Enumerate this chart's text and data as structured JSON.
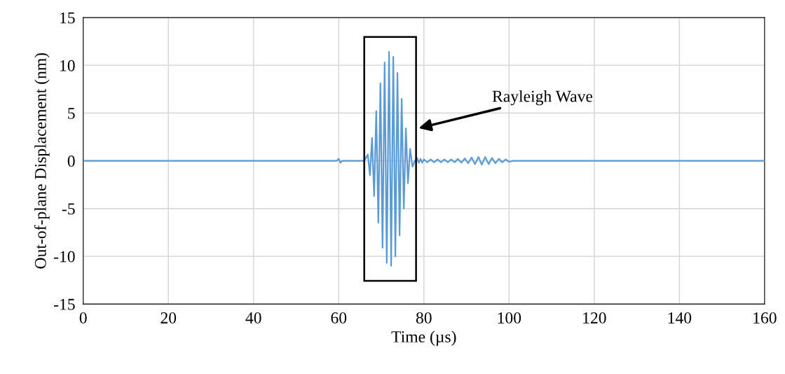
{
  "chart_data": {
    "type": "line",
    "xlabel": "Time (µs)",
    "ylabel": "Out-of-plane Displacement (nm)",
    "xlim": [
      0,
      160
    ],
    "ylim": [
      -15,
      15
    ],
    "xticks": [
      0,
      20,
      40,
      60,
      80,
      100,
      120,
      140,
      160
    ],
    "yticks": [
      -15,
      -10,
      -5,
      0,
      5,
      10,
      15
    ],
    "grid": true,
    "marker": "none",
    "line_style": "solid",
    "series": [
      {
        "color": "#5b9bd5",
        "x": [
          0,
          59.5,
          60.0,
          60.4,
          60.8,
          66.0,
          66.83,
          67.33,
          67.82,
          68.31,
          68.81,
          69.3,
          69.79,
          70.29,
          70.78,
          71.28,
          71.82,
          72.31,
          72.81,
          73.3,
          73.79,
          74.29,
          74.78,
          75.28,
          75.77,
          76.26,
          76.76,
          77.32,
          77.9,
          78.4,
          78.8,
          79.2,
          79.6,
          80.0,
          80.8,
          81.6,
          82.4,
          83.2,
          84.0,
          84.8,
          85.6,
          86.4,
          87.2,
          88.0,
          88.8,
          89.6,
          90.4,
          91.2,
          92.0,
          92.8,
          93.6,
          94.4,
          95.2,
          96.0,
          96.8,
          97.6,
          98.4,
          99.2,
          100.0,
          101.0,
          160
        ],
        "values": [
          0,
          0,
          0.2,
          -0.2,
          0,
          0,
          0.66,
          -1.5,
          2.4,
          -3.7,
          5.2,
          -6.5,
          8.1,
          -9.1,
          10.3,
          -10.7,
          11.4,
          -11.0,
          10.9,
          -10.0,
          9.2,
          -7.8,
          6.5,
          -5.0,
          3.4,
          -2.35,
          1.25,
          -0.6,
          0,
          0.3,
          -0.2,
          0.2,
          -0.2,
          0.15,
          -0.15,
          0.15,
          -0.15,
          0.15,
          -0.15,
          0.15,
          -0.15,
          0.15,
          -0.15,
          0.2,
          -0.2,
          0.25,
          -0.25,
          0.35,
          -0.35,
          0.4,
          -0.4,
          0.4,
          -0.35,
          0.3,
          -0.25,
          0.2,
          -0.15,
          0.15,
          -0.1,
          0,
          0
        ]
      }
    ],
    "annotations": [
      "Rayleigh Wave"
    ]
  }
}
